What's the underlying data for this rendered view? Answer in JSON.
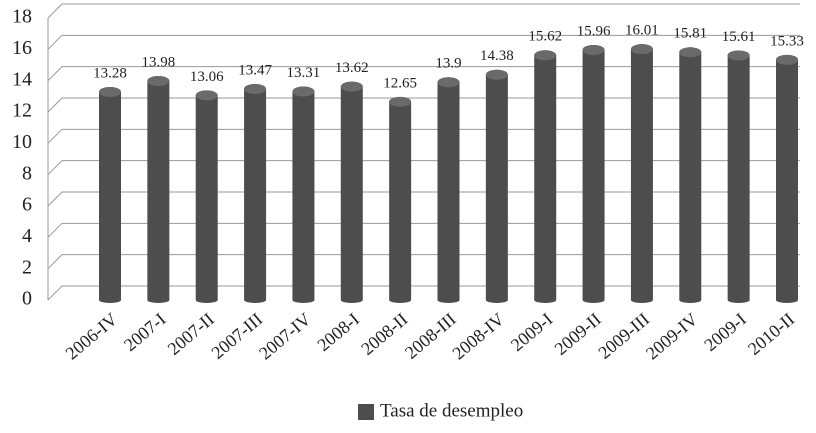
{
  "chart_data": {
    "type": "bar",
    "categories": [
      "2006-IV",
      "2007-I",
      "2007-II",
      "2007-III",
      "2007-IV",
      "2008-I",
      "2008-II",
      "2008-III",
      "2008-IV",
      "2009-I",
      "2009-II",
      "2009-III",
      "2009-IV",
      "2009-I",
      "2010-II"
    ],
    "series": [
      {
        "name": "Tasa de desempleo",
        "color": "#4d4d4d",
        "values": [
          13.28,
          13.98,
          13.06,
          13.47,
          13.31,
          13.62,
          12.65,
          13.9,
          14.38,
          15.62,
          15.96,
          16.01,
          15.81,
          15.61,
          15.33
        ]
      }
    ],
    "ylim": [
      0,
      18
    ],
    "yticks": [
      0,
      2,
      4,
      6,
      8,
      10,
      12,
      14,
      16,
      18
    ],
    "grid": true,
    "legend": "bottom"
  }
}
